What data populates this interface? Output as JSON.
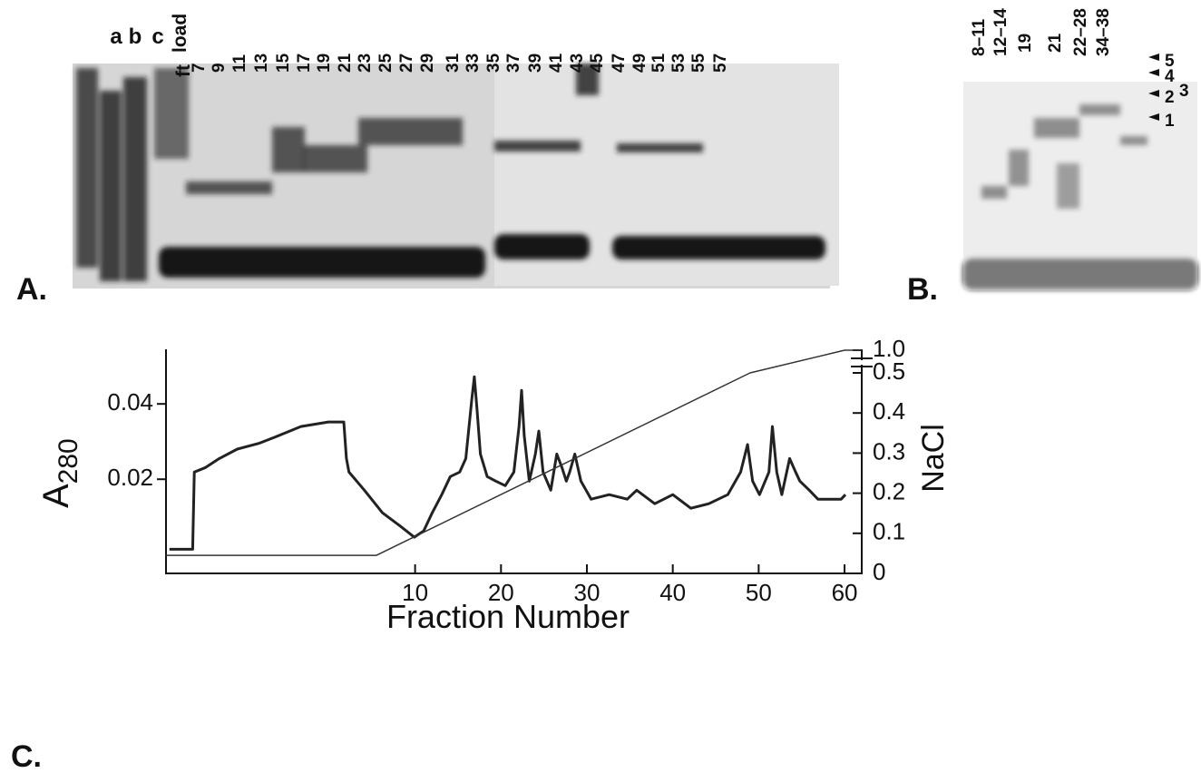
{
  "panel_a": {
    "label": "A.",
    "lanes": [
      "a",
      "b",
      "c",
      "load",
      "ft",
      "7",
      "9",
      "11",
      "13",
      "15",
      "17",
      "19",
      "21",
      "23",
      "25",
      "27",
      "29",
      "31",
      "33",
      "35",
      "37",
      "39",
      "41",
      "43",
      "45",
      "47",
      "49",
      "51",
      "53",
      "55",
      "57"
    ]
  },
  "panel_b": {
    "label": "B.",
    "lanes": [
      "8–11",
      "12–14",
      "19",
      "21",
      "22–28",
      "34–38"
    ],
    "markers": [
      "5",
      "4",
      "3",
      "2",
      "1"
    ]
  },
  "panel_c": {
    "label": "C."
  },
  "chart_data": {
    "type": "line",
    "xlabel": "Fraction Number",
    "ylabel": "A",
    "ylabel_sub": "280",
    "y2label": "NaCl",
    "xlim": [
      -19,
      62
    ],
    "xticks": [
      10,
      20,
      30,
      40,
      50,
      60
    ],
    "ylim": [
      -0.005,
      0.0545
    ],
    "yticks": [
      0.02,
      0.04
    ],
    "y2lim": [
      0,
      1.0
    ],
    "y2ticks": [
      0,
      0.1,
      0.2,
      0.3,
      0.4,
      0.5,
      {
        "value": 1.0,
        "label": "1.0"
      }
    ],
    "series": [
      {
        "color": "#222222",
        "x": [
          -18.6,
          -15.9,
          -15.7,
          -14.4,
          -12.8,
          -10.7,
          -8.1,
          -6.4,
          -3.3,
          -0.1,
          1.7,
          2.0,
          2.3,
          4.1,
          6.2,
          8.3,
          9.9,
          11.0,
          12.0,
          13.1,
          14.1,
          15.2,
          15.9,
          16.6,
          16.9,
          17.2,
          17.6,
          18.4,
          19.4,
          20.5,
          21.5,
          22.1,
          22.4,
          22.7,
          23.3,
          24.0,
          24.4,
          24.9,
          25.8,
          26.5,
          27.1,
          27.6,
          28.0,
          28.6,
          29.3,
          30.5,
          32.6,
          34.7,
          35.8,
          37.9,
          40.0,
          42.1,
          44.2,
          46.4,
          47.9,
          48.7,
          49.3,
          50.1,
          51.2,
          51.6,
          52.1,
          52.7,
          53.6,
          54.3,
          54.8,
          55.9,
          56.9,
          59.6,
          60.1
        ],
        "values": [
          0.0014,
          0.0014,
          0.0219,
          0.0231,
          0.0255,
          0.028,
          0.0296,
          0.0311,
          0.034,
          0.0352,
          0.0352,
          0.0255,
          0.0219,
          0.0171,
          0.0111,
          0.0075,
          0.0046,
          0.0063,
          0.0111,
          0.0159,
          0.0207,
          0.0219,
          0.0255,
          0.0412,
          0.0472,
          0.0388,
          0.0267,
          0.0207,
          0.0195,
          0.0183,
          0.0219,
          0.034,
          0.0436,
          0.0316,
          0.0195,
          0.0267,
          0.0328,
          0.0219,
          0.0171,
          0.0267,
          0.0231,
          0.0195,
          0.0219,
          0.0267,
          0.0195,
          0.0147,
          0.0159,
          0.0147,
          0.0171,
          0.0135,
          0.0159,
          0.0123,
          0.0135,
          0.0159,
          0.0219,
          0.0292,
          0.0195,
          0.0159,
          0.0219,
          0.034,
          0.0219,
          0.0159,
          0.0255,
          0.0219,
          0.0195,
          0.0171,
          0.0147,
          0.0147,
          0.0159
        ]
      },
      {
        "color": "#333333",
        "axis": "y2",
        "x": [
          -19,
          5.5,
          49,
          60,
          62
        ],
        "values": [
          0.045,
          0.045,
          0.5,
          1.0,
          1.0
        ]
      }
    ]
  }
}
